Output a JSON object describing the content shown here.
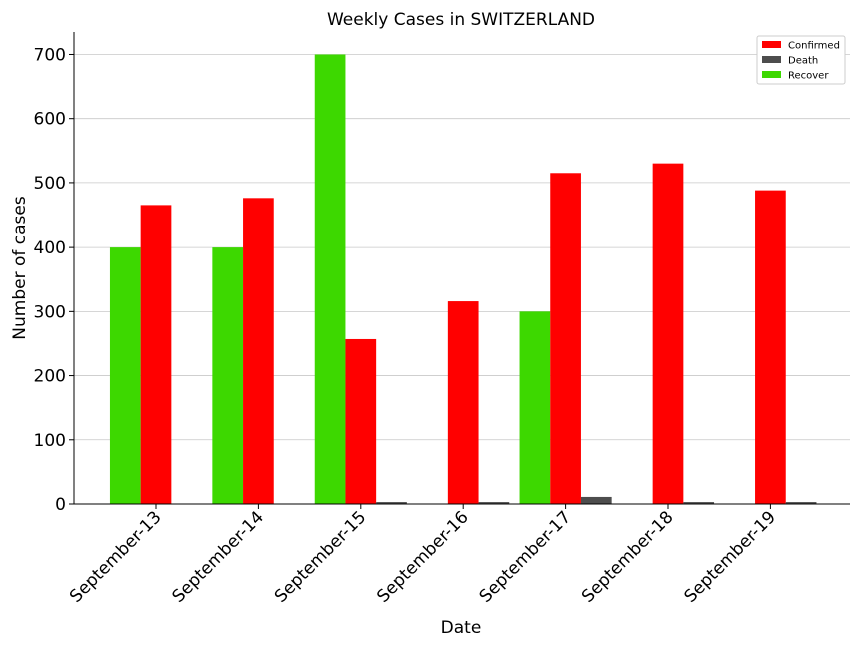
{
  "chart_data": {
    "type": "bar",
    "title": "Weekly Cases in SWITZERLAND",
    "xlabel": "Date",
    "ylabel": "Number of cases",
    "categories": [
      "September-13",
      "September-14",
      "September-15",
      "September-16",
      "September-17",
      "September-18",
      "September-19"
    ],
    "series": [
      {
        "name": "Recover",
        "color": "#3dd800",
        "values": [
          400,
          400,
          700,
          0,
          300,
          0,
          0
        ]
      },
      {
        "name": "Confirmed",
        "color": "#ff0000",
        "values": [
          465,
          476,
          257,
          316,
          515,
          530,
          488
        ]
      },
      {
        "name": "Death",
        "color": "#4d4d4d",
        "values": [
          0,
          0,
          3,
          3,
          11,
          3,
          3
        ]
      }
    ],
    "legend_order": [
      "Confirmed",
      "Death",
      "Recover"
    ],
    "legend_position": "top-right",
    "ylim": [
      0,
      735
    ],
    "yticks": [
      0,
      100,
      200,
      300,
      400,
      500,
      600,
      700
    ],
    "grid": "horizontal"
  }
}
